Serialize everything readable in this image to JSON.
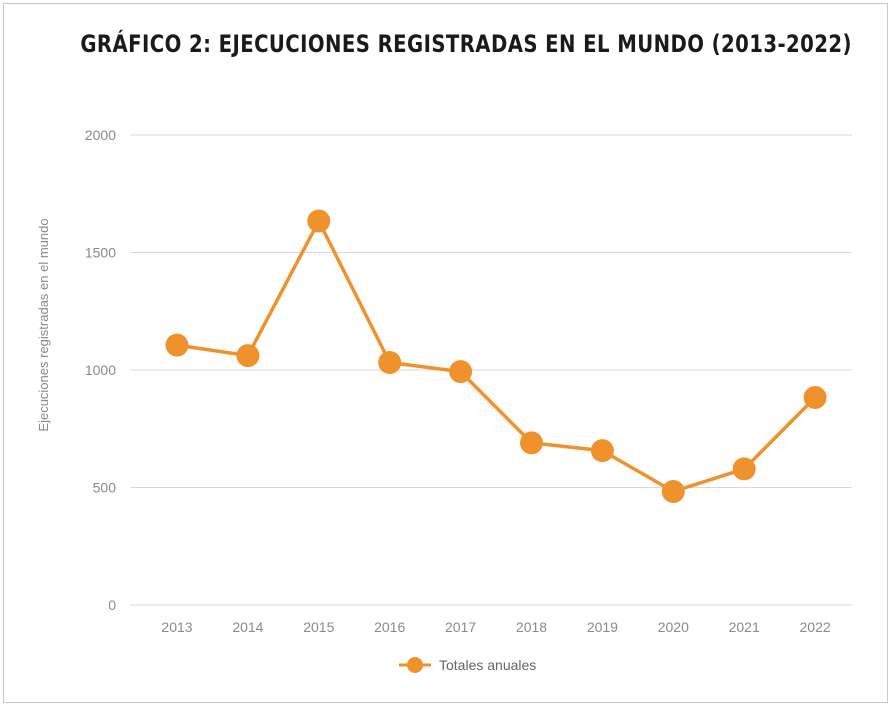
{
  "chart_data": {
    "type": "line",
    "title": "GRÁFICO 2: EJECUCIONES REGISTRADAS EN EL MUNDO (2013-2022)",
    "xlabel": "",
    "ylabel": "Ejecuciones registradas en el mundo",
    "categories": [
      "2013",
      "2014",
      "2015",
      "2016",
      "2017",
      "2018",
      "2019",
      "2020",
      "2021",
      "2022"
    ],
    "series": [
      {
        "name": "Totales anuales",
        "values": [
          1106,
          1061,
          1634,
          1032,
          993,
          690,
          657,
          483,
          579,
          883
        ]
      }
    ],
    "yticks": [
      0,
      500,
      1000,
      1500,
      2000
    ],
    "ylim": [
      0,
      2000
    ],
    "grid": true,
    "legend": "bottom",
    "color": "#f0922b",
    "gridColor": "#d9d9d9"
  }
}
